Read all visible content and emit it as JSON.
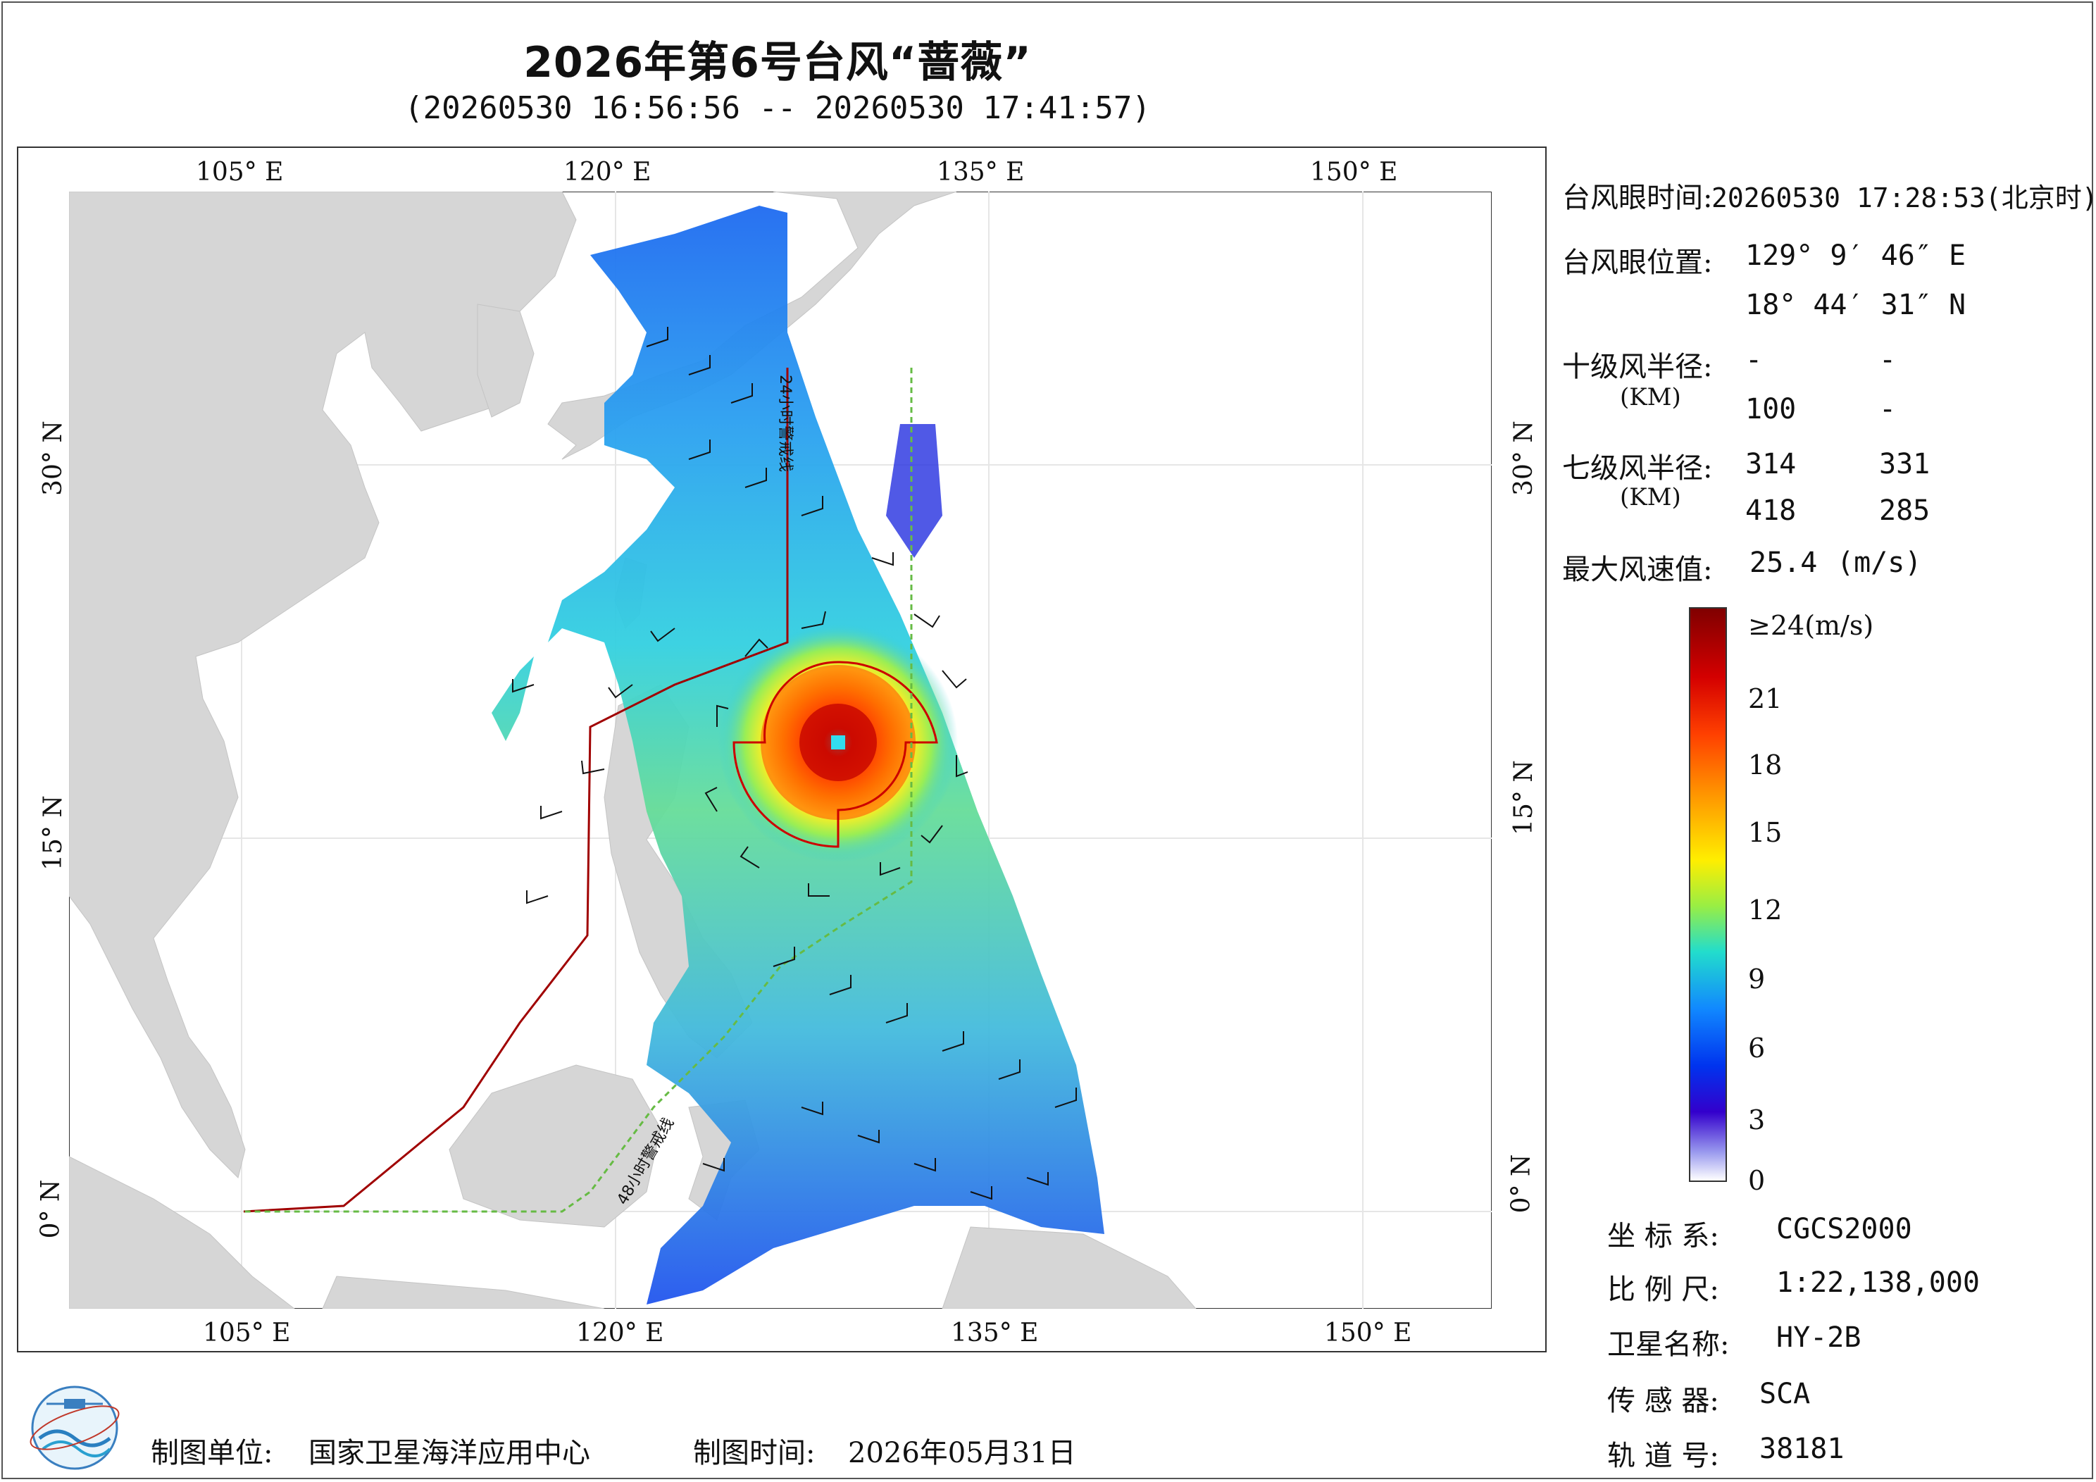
{
  "header": {
    "title": "2026年第6号台风“蔷薇”",
    "subtitle": "(20260530 16:56:56 -- 20260530 17:41:57)"
  },
  "map": {
    "lon_ticks": [
      "105° E",
      "120° E",
      "135° E",
      "150° E"
    ],
    "lat_ticks": [
      "30° N",
      "15° N",
      "0° N"
    ],
    "lon_range": [
      98,
      155
    ],
    "lat_range": [
      -4,
      41
    ],
    "track_label_24h": "24小时警戒线",
    "track_label_48h": "48小时警戒线",
    "land_color": "#d6d6d6",
    "sea_color": "#ffffff",
    "warning_24h_color": "#a00000",
    "warning_48h_color": "#66bb44"
  },
  "info": {
    "eye_time_label": "台风眼时间:",
    "eye_time_value": "20260530 17:28:53(北京时)",
    "eye_pos_label": "台风眼位置:",
    "eye_lon": "129° 9′ 46″ E",
    "eye_lat": "18° 44′ 31″ N",
    "r10_label": "十级风半径:",
    "r10_unit": "(KM)",
    "r10_values": [
      "-",
      "-",
      "100",
      "-"
    ],
    "r7_label": "七级风半径:",
    "r7_unit": "(KM)",
    "r7_values": [
      "314",
      "331",
      "418",
      "285"
    ],
    "max_wind_label": "最大风速值:",
    "max_wind_value": "25.4",
    "max_wind_unit": "(m/s)"
  },
  "colorbar": {
    "labels": [
      "≥24(m/s)",
      "21",
      "18",
      "15",
      "12",
      "9",
      "6",
      "3",
      "0"
    ],
    "stops": [
      "#800000",
      "#d40000",
      "#ff4000",
      "#ff9900",
      "#ffee00",
      "#99ee44",
      "#22ddcc",
      "#1188ff",
      "#0033ee",
      "#3300cc",
      "#9999ee",
      "#ffffff"
    ]
  },
  "meta": {
    "crs_label": "坐 标 系:",
    "crs_value": "CGCS2000",
    "scale_label": "比 例 尺:",
    "scale_value": "1:22,138,000",
    "sat_label": "卫星名称:",
    "sat_value": "HY-2B",
    "sensor_label": "传 感 器:",
    "sensor_value": "SCA",
    "orbit_label": "轨 道 号:",
    "orbit_value": "38181"
  },
  "footer": {
    "unit_label": "制图单位:",
    "unit_value": "国家卫星海洋应用中心",
    "time_label": "制图时间:",
    "time_value": "2026年05月31日"
  }
}
